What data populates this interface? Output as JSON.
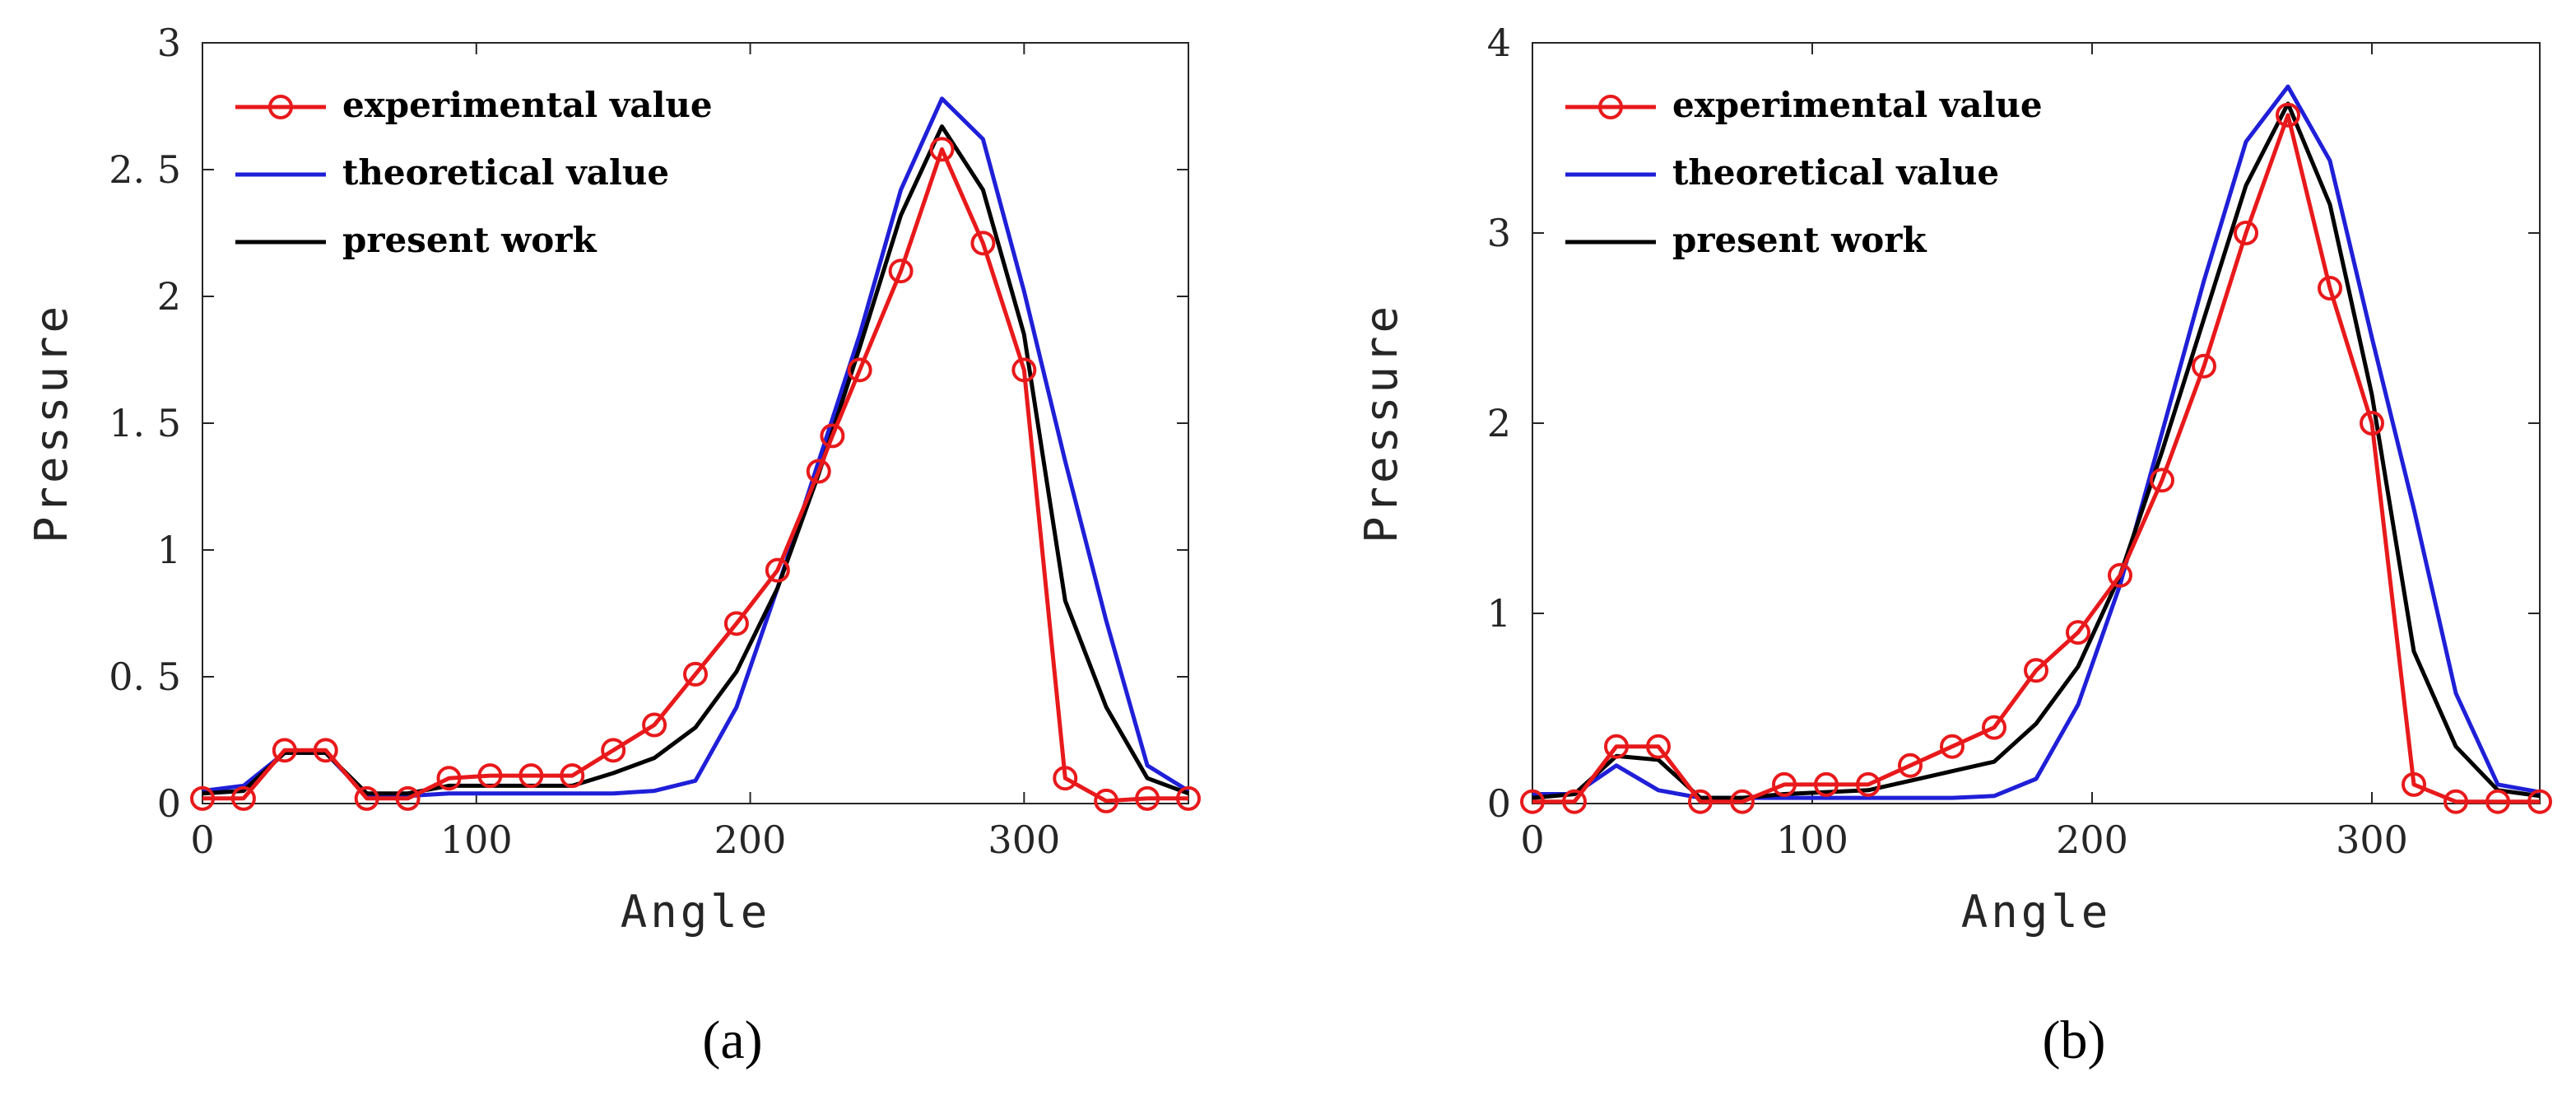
{
  "chart_data": [
    {
      "type": "line",
      "panel_label": "(a)",
      "xlabel": "Angle",
      "ylabel": "Pressure",
      "xlim": [
        0,
        360
      ],
      "ylim": [
        0,
        3
      ],
      "xticks": [
        0,
        100,
        200,
        300
      ],
      "xtick_labels": [
        "0",
        "100",
        "200",
        "300"
      ],
      "yticks": [
        0,
        0.5,
        1,
        1.5,
        2,
        2.5,
        3
      ],
      "ytick_labels": [
        "0",
        "0. 5",
        "1",
        "1. 5",
        "2",
        "2. 5",
        "3"
      ],
      "grid": false,
      "legend_position": "top-left",
      "series": [
        {
          "name": "experimental value",
          "color": "#e8191b",
          "marker": "circle",
          "x": [
            0,
            15,
            30,
            45,
            60,
            75,
            90,
            105,
            120,
            135,
            150,
            165,
            180,
            195,
            210,
            225,
            230,
            240,
            255,
            270,
            285,
            300,
            315,
            330,
            345,
            360
          ],
          "y": [
            0.02,
            0.02,
            0.21,
            0.21,
            0.02,
            0.02,
            0.1,
            0.11,
            0.11,
            0.11,
            0.21,
            0.31,
            0.51,
            0.71,
            0.92,
            1.31,
            1.45,
            1.71,
            2.1,
            2.58,
            2.21,
            1.71,
            0.1,
            0.01,
            0.02,
            0.02
          ]
        },
        {
          "name": "theoretical value",
          "color": "#1f1fd8",
          "marker": "none",
          "x": [
            0,
            15,
            30,
            45,
            60,
            75,
            90,
            105,
            120,
            135,
            150,
            165,
            180,
            195,
            210,
            225,
            240,
            255,
            270,
            285,
            300,
            315,
            330,
            345,
            360
          ],
          "y": [
            0.05,
            0.07,
            0.2,
            0.2,
            0.03,
            0.03,
            0.04,
            0.04,
            0.04,
            0.04,
            0.04,
            0.05,
            0.09,
            0.38,
            0.85,
            1.35,
            1.85,
            2.42,
            2.78,
            2.62,
            2.02,
            1.35,
            0.72,
            0.15,
            0.05
          ]
        },
        {
          "name": "present work",
          "color": "#000000",
          "marker": "none",
          "x": [
            0,
            15,
            30,
            45,
            60,
            75,
            90,
            105,
            120,
            135,
            150,
            165,
            180,
            195,
            210,
            225,
            240,
            255,
            270,
            285,
            300,
            315,
            330,
            345,
            360
          ],
          "y": [
            0.04,
            0.05,
            0.2,
            0.2,
            0.04,
            0.04,
            0.07,
            0.07,
            0.07,
            0.07,
            0.12,
            0.18,
            0.3,
            0.52,
            0.85,
            1.3,
            1.8,
            2.32,
            2.67,
            2.42,
            1.85,
            0.8,
            0.38,
            0.1,
            0.04
          ]
        }
      ]
    },
    {
      "type": "line",
      "panel_label": "(b)",
      "xlabel": "Angle",
      "ylabel": "Pressure",
      "xlim": [
        0,
        360
      ],
      "ylim": [
        0,
        4
      ],
      "xticks": [
        0,
        100,
        200,
        300
      ],
      "xtick_labels": [
        "0",
        "100",
        "200",
        "300"
      ],
      "yticks": [
        0,
        1,
        2,
        3,
        4
      ],
      "ytick_labels": [
        "0",
        "1",
        "2",
        "3",
        "4"
      ],
      "grid": false,
      "legend_position": "top-left",
      "series": [
        {
          "name": "experimental value",
          "color": "#e8191b",
          "marker": "circle",
          "x": [
            0,
            15,
            30,
            45,
            60,
            75,
            90,
            105,
            120,
            135,
            150,
            165,
            180,
            195,
            210,
            225,
            240,
            255,
            270,
            285,
            300,
            315,
            330,
            345,
            360
          ],
          "y": [
            0.01,
            0.01,
            0.3,
            0.3,
            0.01,
            0.01,
            0.1,
            0.1,
            0.1,
            0.2,
            0.3,
            0.4,
            0.7,
            0.9,
            1.2,
            1.7,
            2.3,
            3.0,
            3.62,
            2.71,
            2.0,
            0.1,
            0.01,
            0.01,
            0.01
          ]
        },
        {
          "name": "theoretical value",
          "color": "#1f1fd8",
          "marker": "none",
          "x": [
            0,
            15,
            30,
            45,
            60,
            75,
            90,
            105,
            120,
            135,
            150,
            165,
            180,
            195,
            210,
            225,
            240,
            255,
            270,
            285,
            300,
            315,
            330,
            345,
            360
          ],
          "y": [
            0.05,
            0.05,
            0.2,
            0.07,
            0.03,
            0.03,
            0.03,
            0.03,
            0.03,
            0.03,
            0.03,
            0.04,
            0.13,
            0.52,
            1.15,
            1.95,
            2.75,
            3.48,
            3.77,
            3.38,
            2.45,
            1.55,
            0.58,
            0.1,
            0.06
          ]
        },
        {
          "name": "present work",
          "color": "#000000",
          "marker": "none",
          "x": [
            0,
            15,
            30,
            45,
            60,
            75,
            90,
            105,
            120,
            135,
            150,
            165,
            180,
            195,
            210,
            225,
            240,
            255,
            270,
            285,
            300,
            315,
            330,
            345,
            360
          ],
          "y": [
            0.03,
            0.05,
            0.25,
            0.23,
            0.03,
            0.03,
            0.05,
            0.06,
            0.07,
            0.12,
            0.17,
            0.22,
            0.42,
            0.72,
            1.2,
            1.85,
            2.55,
            3.25,
            3.68,
            3.15,
            2.15,
            0.8,
            0.3,
            0.07,
            0.04
          ]
        }
      ]
    }
  ]
}
